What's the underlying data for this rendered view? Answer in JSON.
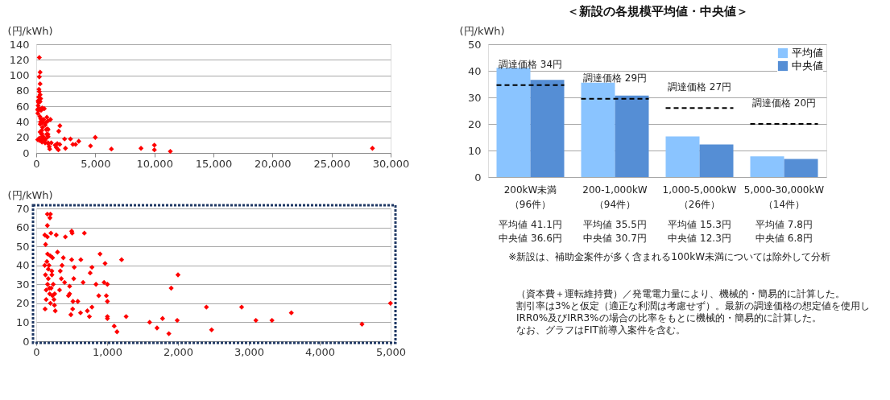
{
  "chart_data": [
    {
      "type": "scatter",
      "ylabel": "(円/kWh)",
      "xlim": [
        0,
        30000
      ],
      "xticks": [
        0,
        {
          "value": 5000,
          "label": "5,000"
        },
        {
          "value": 10000,
          "label": "10,000"
        },
        {
          "value": 15000,
          "label": "15,000"
        },
        {
          "value": 20000,
          "label": "20,000"
        },
        {
          "value": 25000,
          "label": "25,000"
        },
        {
          "value": 30000,
          "label": "30,000"
        }
      ],
      "ylim": [
        0,
        140
      ],
      "yticks": [
        0,
        20,
        40,
        60,
        80,
        100,
        120,
        140
      ],
      "grid": "y",
      "marker": "diamond",
      "series": [
        {
          "color": "#ff0000",
          "x": [
            157,
            200,
            193,
            157,
            207,
            121,
            157,
            282,
            411,
            500,
            507,
            679,
            132,
            300,
            900,
            382,
            500,
            629,
            1204,
            971,
            786,
            536,
            364,
            339,
            761,
            2000,
            529,
            957,
            1004,
            843,
            471,
            1904,
            329,
            882,
            989,
            1004,
            471,
            454,
            586,
            518,
            257,
            514,
            489,
            721,
            786,
            750,
            125,
            268,
            1004,
            1004,
            1268,
            1100,
            1139,
            1600,
            1704,
            1782,
            1871,
            1989,
            2401,
            2474,
            2898,
            3099,
            3326,
            3599,
            4596,
            4998,
            261,
            327,
            261,
            327,
            261,
            327,
            370,
            327,
            200,
            230,
            6361,
            8867,
            10000,
            10000,
            11350,
            28460
          ],
          "values": [
            67,
            67,
            65,
            61,
            57,
            56,
            55,
            56,
            55,
            58,
            57,
            57,
            51,
            47,
            46,
            44,
            43,
            43,
            43,
            41,
            39,
            39,
            40,
            37,
            36,
            35,
            33,
            31,
            30,
            30,
            29,
            28,
            27,
            24,
            24,
            21,
            25,
            24,
            21,
            21,
            19,
            17,
            14,
            16,
            18,
            13,
            17,
            16,
            13,
            12,
            13,
            8,
            5,
            10,
            7,
            12,
            4,
            11,
            18,
            6,
            18,
            11,
            11,
            15,
            9,
            20,
            123,
            104,
            98,
            89,
            79,
            75,
            70,
            66,
            72,
            82,
            5,
            6,
            10,
            4,
            2,
            6
          ]
        }
      ]
    },
    {
      "type": "scatter",
      "ylabel": "(円/kWh)",
      "xlim": [
        0,
        5000
      ],
      "xticks": [
        0,
        {
          "value": 1000,
          "label": "1,000"
        },
        {
          "value": 2000,
          "label": "2,000"
        },
        {
          "value": 3000,
          "label": "3,000"
        },
        {
          "value": 4000,
          "label": "4,000"
        },
        {
          "value": 5000,
          "label": "5,000"
        }
      ],
      "ylim": [
        0,
        70
      ],
      "yticks": [
        0,
        10,
        20,
        30,
        40,
        50,
        60,
        70
      ],
      "grid": "y",
      "marker": "diamond",
      "series": [
        {
          "color": "#ff0000",
          "x": [
            157,
            200,
            193,
            157,
            207,
            121,
            157,
            282,
            411,
            500,
            507,
            679,
            132,
            300,
            900,
            382,
            500,
            629,
            1204,
            971,
            786,
            536,
            364,
            339,
            761,
            221,
            2000,
            529,
            354,
            400,
            661,
            957,
            1004,
            843,
            471,
            1904,
            329,
            186,
            882,
            989,
            1004,
            471,
            454,
            586,
            518,
            257,
            625,
            514,
            489,
            721,
            786,
            750,
            125,
            268,
            1004,
            1004,
            1268,
            1100,
            1139,
            1600,
            1704,
            1782,
            1871,
            1989,
            2401,
            2474,
            2898,
            3099,
            3326,
            3599,
            4596,
            4998,
            150,
            170,
            200,
            130,
            160,
            190,
            140,
            210,
            230,
            250,
            180,
            220,
            160,
            240,
            200,
            140,
            260,
            120,
            170,
            230
          ],
          "values": [
            67,
            67,
            65,
            61,
            57,
            56,
            55,
            56,
            55,
            58,
            57,
            57,
            51,
            47,
            46,
            44,
            43,
            43,
            43,
            41,
            39,
            39,
            40,
            37,
            36,
            35,
            35,
            33,
            33,
            31,
            31,
            31,
            30,
            30,
            29,
            28,
            27,
            28,
            24,
            24,
            21,
            25,
            24,
            21,
            21,
            19,
            15,
            17,
            14,
            16,
            18,
            13,
            17,
            16,
            13,
            12,
            13,
            8,
            5,
            10,
            7,
            12,
            4,
            11,
            18,
            6,
            18,
            11,
            11,
            15,
            9,
            20,
            42,
            38,
            45,
            35,
            30,
            25,
            22,
            28,
            24,
            22,
            40,
            37,
            46,
            30,
            20,
            27,
            25,
            40,
            33,
            44
          ]
        }
      ]
    },
    {
      "type": "bar",
      "title": "＜新設の各規模平均値・中央値＞",
      "ylabel": "(円/kWh)",
      "ylim": [
        0,
        50
      ],
      "yticks": [
        0,
        10,
        20,
        30,
        40,
        50
      ],
      "grid": "y",
      "legend": "top right",
      "categories": [
        "200kW未満（96件）",
        "200-1,000kW（94件）",
        "1,000-5,000kW（26件）",
        "5,000-30,000kW（14件）"
      ],
      "series": [
        {
          "name": "平均値",
          "color": "#8ac4ff",
          "values": [
            41.1,
            35.5,
            15.3,
            7.8
          ],
          "value_labels": [
            "平均値 41.1円",
            "平均値 35.5円",
            "平均値 15.3円",
            "平均値 7.8円"
          ]
        },
        {
          "name": "中央値",
          "color": "#558ed5",
          "values": [
            36.6,
            30.7,
            12.3,
            6.8
          ],
          "value_labels": [
            "中央値 36.6円",
            "中央値 30.7円",
            "中央値 12.3円",
            "中央値 6.8円"
          ]
        }
      ],
      "ref_lines": [
        {
          "axis": "y",
          "value": 34.6,
          "label": "調達価格 34円",
          "line_style": "dashed",
          "color": "#000000"
        },
        {
          "axis": "y",
          "value": 29.5,
          "label": "調達価格 29円",
          "line_style": "dashed",
          "color": "#000000"
        },
        {
          "axis": "y",
          "value": 26,
          "label": "調達価格 27円",
          "line_style": "dashed",
          "color": "#000000"
        },
        {
          "axis": "y",
          "value": 20,
          "label": "調達価格 20円",
          "line_style": "dashed",
          "color": "#000000"
        }
      ],
      "annotations": [
        "※新設は、補助金案件が多く含まれる100kW未満については除外して分析",
        "（資本費＋運転維持費）／発電電力量により、機械的・簡易的に計算した。",
        "割引率は3%と仮定（適正な利潤は考慮せず）。最新の調達価格の想定値を使用し",
        "IRR0%及びIRR3%の場合の比率をもとに機械的・簡易的に計算した。",
        "なお、グラフはFIT前導入案件を含む。"
      ]
    }
  ]
}
